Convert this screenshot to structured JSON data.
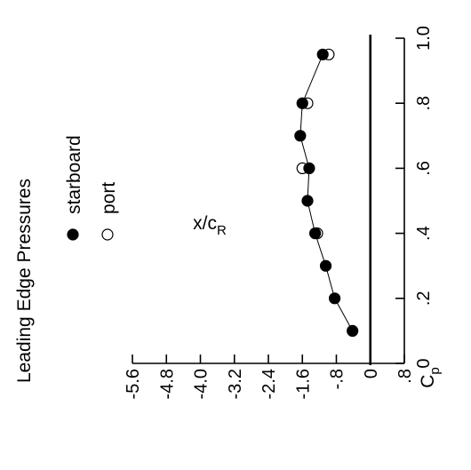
{
  "chart_data": {
    "type": "scatter",
    "title": "Leading Edge Pressures",
    "xlabel": "x/c",
    "xlabel_sub": "R",
    "ylabel": "C",
    "ylabel_sub": "p",
    "xlim": [
      0,
      1.0
    ],
    "ylim": [
      0.8,
      -5.6
    ],
    "y_inverted": true,
    "rotation": "chart rotated 90 degrees counter-clockwise",
    "x_ticks": [
      {
        "value": 0,
        "label": "0"
      },
      {
        "value": 0.2,
        "label": ".2"
      },
      {
        "value": 0.4,
        "label": ".4"
      },
      {
        "value": 0.6,
        "label": ".6"
      },
      {
        "value": 0.8,
        "label": ".8"
      },
      {
        "value": 1.0,
        "label": "1.0"
      }
    ],
    "y_ticks": [
      {
        "value": 0.8,
        "label": ".8"
      },
      {
        "value": 0,
        "label": "0"
      },
      {
        "value": -0.8,
        "label": "-.8"
      },
      {
        "value": -1.6,
        "label": "-1.6"
      },
      {
        "value": -2.4,
        "label": "-2.4"
      },
      {
        "value": -3.2,
        "label": "-3.2"
      },
      {
        "value": -4.0,
        "label": "-4.0"
      },
      {
        "value": -4.8,
        "label": "-4.8"
      },
      {
        "value": -5.6,
        "label": "-5.6"
      }
    ],
    "zero_line": true,
    "grid": false,
    "legend_position": "top-left",
    "series": [
      {
        "name": "starboard",
        "marker": "filled-circle",
        "connected": true,
        "x": [
          0.1,
          0.2,
          0.3,
          0.4,
          0.5,
          0.6,
          0.7,
          0.8,
          0.95
        ],
        "y": [
          -0.42,
          -0.84,
          -1.05,
          -1.3,
          -1.48,
          -1.44,
          -1.65,
          -1.6,
          -1.12
        ]
      },
      {
        "name": "port",
        "marker": "open-circle",
        "connected": false,
        "x": [
          0.4,
          0.6,
          0.8,
          0.95
        ],
        "y": [
          -1.25,
          -1.6,
          -1.48,
          -0.98
        ]
      }
    ]
  }
}
